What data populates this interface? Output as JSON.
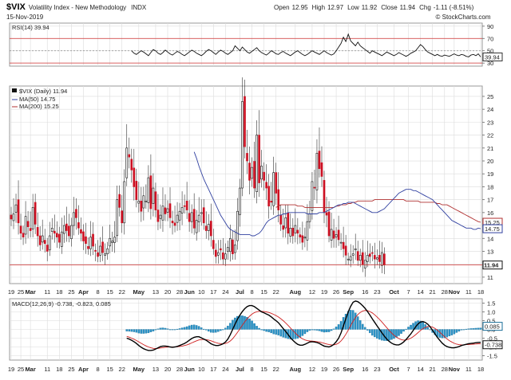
{
  "header": {
    "symbol": "$VIX",
    "name": "Volatility Index - New Methodology",
    "exchange": "INDX",
    "date": "15-Nov-2019",
    "ohlc": [
      {
        "label": "Open",
        "value": "12.95"
      },
      {
        "label": "High",
        "value": "12.97"
      },
      {
        "label": "Low",
        "value": "11.92"
      },
      {
        "label": "Close",
        "value": "11.94"
      },
      {
        "label": "Chg",
        "value": "-1.11 (-8.51%)"
      }
    ],
    "watermark": "© StockCharts.com"
  },
  "chart_data": [
    {
      "type": "line",
      "name": "rsi",
      "legend": "RSI(14) 39.94",
      "ylim": [
        25,
        95
      ],
      "yticks": [
        30,
        50,
        70,
        90
      ],
      "ref_lines": [
        30,
        50,
        70
      ],
      "last_label": "39.94",
      "values": [
        50,
        46,
        44,
        47,
        50,
        48,
        45,
        42,
        47,
        52,
        50,
        46,
        44,
        47,
        51,
        48,
        45,
        43,
        46,
        49,
        47,
        44,
        42,
        45,
        48,
        51,
        49,
        46,
        44,
        42,
        45,
        49,
        52,
        50,
        47,
        44,
        48,
        51,
        49,
        46,
        44,
        47,
        50,
        58,
        54,
        50,
        56,
        52,
        48,
        46,
        49,
        52,
        55,
        50,
        47,
        45,
        43,
        46,
        50,
        48,
        45,
        44,
        47,
        49,
        46,
        44,
        42,
        45,
        48,
        50,
        47,
        44,
        42,
        44,
        47,
        50,
        48,
        46,
        44,
        47,
        50,
        47,
        45,
        43,
        45,
        50,
        56,
        62,
        72,
        65,
        77,
        66,
        62,
        58,
        64,
        58,
        55,
        52,
        49,
        46,
        50,
        48,
        46,
        44,
        42,
        45,
        48,
        46,
        44,
        42,
        44,
        47,
        45,
        43,
        41,
        43,
        46,
        48,
        50,
        55,
        60,
        57,
        52,
        48,
        46,
        44,
        42,
        44,
        42,
        41,
        43,
        42,
        41,
        43,
        45,
        43,
        42,
        44,
        43,
        41,
        40,
        43,
        44,
        42,
        45,
        40
      ]
    },
    {
      "type": "candlestick",
      "name": "price",
      "legend": [
        "$VIX (Daily) 11.94",
        "MA(50) 14.75",
        "MA(200) 15.25"
      ],
      "ylim": [
        10.5,
        25.8
      ],
      "yticks": [
        11,
        12,
        13,
        14,
        15,
        16,
        17,
        18,
        19,
        20,
        21,
        22,
        23,
        24,
        25
      ],
      "last_close": "11.94",
      "ma50_label": "14.75",
      "ma200_label": "15.25",
      "closes": [
        15.5,
        15.9,
        16.6,
        15.2,
        14.4,
        14.1,
        15.7,
        14.9,
        14.6,
        16.4,
        15.1,
        14.2,
        13.5,
        14.2,
        13.6,
        13.0,
        14.2,
        14.8,
        14.4,
        14.1,
        13.7,
        14.5,
        15.0,
        14.6,
        14.2,
        15.0,
        16.0,
        15.6,
        14.8,
        14.4,
        13.8,
        13.6,
        13.2,
        14.1,
        13.4,
        13.0,
        12.6,
        13.4,
        12.9,
        12.8,
        13.2,
        14.0,
        13.8,
        14.1,
        17.0,
        16.4,
        15.2,
        18.4,
        21.0,
        20.3,
        19.3,
        18.0,
        17.0,
        16.9,
        16.1,
        17.3,
        16.9,
        18.7,
        16.3,
        17.9,
        16.2,
        15.3,
        15.8,
        16.5,
        15.9,
        16.3,
        15.6,
        15.2,
        15.0,
        15.8,
        16.1,
        16.4,
        16.5,
        16.2,
        15.3,
        16.0,
        14.8,
        15.4,
        15.8,
        16.0,
        15.2,
        14.6,
        15.1,
        14.2,
        13.2,
        12.6,
        12.9,
        13.1,
        12.4,
        12.8,
        13.3,
        14.0,
        12.8,
        13.5,
        16.1,
        17.9,
        24.6,
        21.1,
        20.0,
        18.5,
        19.5,
        17.9,
        22.0,
        18.3,
        19.6,
        18.5,
        17.9,
        16.5,
        16.8,
        19.1,
        17.5,
        16.2,
        15.1,
        14.7,
        15.6,
        14.4,
        14.8,
        14.2,
        15.0,
        14.4,
        14.1,
        13.7,
        14.1,
        15.3,
        15.9,
        18.4,
        17.9,
        20.6,
        19.4,
        18.8,
        16.0,
        15.8,
        14.2,
        14.7,
        14.0,
        14.3,
        13.9,
        13.7,
        13.2,
        12.7,
        12.4,
        12.6,
        12.8,
        13.2,
        12.3,
        12.7,
        12.0,
        12.3,
        12.7,
        12.6,
        12.9,
        12.4,
        12.5,
        12.2,
        12.9,
        11.94
      ],
      "ma50": [
        20.7,
        20.2,
        19.6,
        19.1,
        18.6,
        18.2,
        17.8,
        17.4,
        17.0,
        16.6,
        16.2,
        15.8,
        15.5,
        15.2,
        14.9,
        14.7,
        14.6,
        14.5,
        14.4,
        14.3,
        14.3,
        14.3,
        14.3,
        14.3,
        14.2,
        14.2,
        14.3,
        14.4,
        14.6,
        14.9,
        15.2,
        15.4,
        15.5,
        15.6,
        15.7,
        15.8,
        15.8,
        15.9,
        15.9,
        16.0,
        16.0,
        16.0,
        16.0,
        16.0,
        16.0,
        16.0,
        16.0,
        15.9,
        15.9,
        15.9,
        15.9,
        15.9,
        16.0,
        16.0,
        16.0,
        16.1,
        16.2,
        16.3,
        16.4,
        16.5,
        16.6,
        16.6,
        16.7,
        16.7,
        16.8,
        16.8,
        16.8,
        16.7,
        16.6,
        16.5,
        16.4,
        16.3,
        16.2,
        16.1,
        16.0,
        16.0,
        16.0,
        16.1,
        16.2,
        16.3,
        16.5,
        16.7,
        16.9,
        17.1,
        17.3,
        17.5,
        17.6,
        17.7,
        17.8,
        17.8,
        17.8,
        17.7,
        17.7,
        17.6,
        17.5,
        17.4,
        17.3,
        17.2,
        17.1,
        17.0,
        16.8,
        16.6,
        16.4,
        16.2,
        16.0,
        15.8,
        15.6,
        15.4,
        15.3,
        15.2,
        15.1,
        15.0,
        14.9,
        14.8,
        14.8,
        14.8,
        14.7,
        14.7,
        14.8,
        14.75
      ],
      "ma200": [
        16.4,
        16.5,
        16.6,
        16.6,
        16.6,
        16.6,
        16.6,
        16.6,
        16.6,
        16.5,
        16.5,
        16.5,
        16.4,
        16.4,
        16.4,
        16.4,
        16.4,
        16.4,
        16.4,
        16.4,
        16.4,
        16.4,
        16.4,
        16.4,
        16.4,
        16.5,
        16.5,
        16.6,
        16.6,
        16.6,
        16.7,
        16.7,
        16.8,
        16.8,
        16.9,
        16.9,
        16.9,
        16.9,
        16.9,
        16.9,
        16.9,
        17.0,
        17.0,
        17.0,
        17.0,
        17.0,
        17.0,
        17.0,
        17.0,
        17.0,
        17.0,
        17.0,
        17.0,
        17.0,
        16.9,
        16.9,
        16.9,
        16.9,
        16.9,
        16.9,
        16.8,
        16.8,
        16.8,
        16.8,
        16.8,
        16.8,
        16.8,
        16.7,
        16.7,
        16.6,
        16.6,
        16.6,
        16.5,
        16.4,
        16.3,
        16.2,
        16.1,
        16.0,
        15.9,
        15.8,
        15.7,
        15.6,
        15.5,
        15.4,
        15.3,
        15.25
      ]
    },
    {
      "type": "bar",
      "name": "macd",
      "legend": "MACD(12,26,9) -0.738, -0.823, 0.085",
      "ylim": [
        -1.75,
        1.75
      ],
      "yticks": [
        -1.5,
        -1.0,
        -0.5,
        0.0,
        0.5,
        1.0,
        1.5
      ],
      "last_labels": [
        "0.085",
        "-0.738"
      ],
      "macd": [
        -0.5,
        -0.55,
        -0.62,
        -0.7,
        -0.8,
        -0.92,
        -1.02,
        -1.1,
        -1.16,
        -1.2,
        -1.2,
        -1.18,
        -1.12,
        -1.05,
        -0.98,
        -0.95,
        -0.95,
        -0.97,
        -1.0,
        -1.02,
        -1.0,
        -0.97,
        -0.92,
        -0.86,
        -0.8,
        -0.72,
        -0.62,
        -0.52,
        -0.45,
        -0.42,
        -0.42,
        -0.48,
        -0.55,
        -0.62,
        -0.72,
        -0.82,
        -0.88,
        -0.92,
        -0.92,
        -0.88,
        -0.82,
        -0.72,
        -0.55,
        -0.3,
        0.0,
        0.3,
        0.58,
        0.82,
        1.02,
        1.18,
        1.3,
        1.36,
        1.36,
        1.3,
        1.2,
        1.1,
        1.0,
        0.95,
        0.88,
        0.82,
        0.72,
        0.6,
        0.5,
        0.38,
        0.22,
        0.05,
        -0.12,
        -0.3,
        -0.48,
        -0.62,
        -0.75,
        -0.85,
        -0.9,
        -0.9,
        -0.85,
        -0.78,
        -0.72,
        -0.7,
        -0.72,
        -0.75,
        -0.8,
        -0.88,
        -0.95,
        -0.98,
        -1.0,
        -0.95,
        -0.85,
        -0.7,
        -0.5,
        -0.2,
        0.2,
        0.6,
        1.0,
        1.32,
        1.55,
        1.62,
        1.58,
        1.48,
        1.35,
        1.2,
        1.02,
        0.82,
        0.6,
        0.4,
        0.2,
        0.0,
        -0.2,
        -0.38,
        -0.55,
        -0.68,
        -0.78,
        -0.85,
        -0.88,
        -0.88,
        -0.82,
        -0.72,
        -0.58,
        -0.42,
        -0.25,
        -0.05,
        0.15,
        0.32,
        0.42,
        0.45,
        0.4,
        0.3,
        0.15,
        -0.05,
        -0.25,
        -0.45,
        -0.62,
        -0.78,
        -0.9,
        -0.98,
        -1.02,
        -1.05,
        -1.05,
        -1.02,
        -0.98,
        -0.92,
        -0.88,
        -0.85,
        -0.82,
        -0.8,
        -0.78,
        -0.76,
        -0.74,
        -0.738
      ],
      "signal": [
        -0.4,
        -0.44,
        -0.5,
        -0.56,
        -0.63,
        -0.71,
        -0.79,
        -0.87,
        -0.94,
        -1.0,
        -1.05,
        -1.08,
        -1.09,
        -1.08,
        -1.06,
        -1.04,
        -1.02,
        -1.01,
        -1.0,
        -1.0,
        -1.0,
        -0.99,
        -0.97,
        -0.95,
        -0.92,
        -0.88,
        -0.83,
        -0.77,
        -0.71,
        -0.65,
        -0.6,
        -0.58,
        -0.57,
        -0.58,
        -0.61,
        -0.65,
        -0.7,
        -0.75,
        -0.79,
        -0.81,
        -0.82,
        -0.8,
        -0.75,
        -0.66,
        -0.53,
        -0.36,
        -0.17,
        0.03,
        0.24,
        0.43,
        0.6,
        0.75,
        0.87,
        0.96,
        1.01,
        1.03,
        1.03,
        1.02,
        1.0,
        0.97,
        0.92,
        0.86,
        0.79,
        0.71,
        0.61,
        0.5,
        0.37,
        0.23,
        0.08,
        -0.07,
        -0.21,
        -0.34,
        -0.45,
        -0.54,
        -0.6,
        -0.64,
        -0.66,
        -0.67,
        -0.68,
        -0.7,
        -0.72,
        -0.75,
        -0.79,
        -0.83,
        -0.86,
        -0.88,
        -0.88,
        -0.85,
        -0.78,
        -0.66,
        -0.49,
        -0.28,
        -0.04,
        0.22,
        0.46,
        0.68,
        0.85,
        0.97,
        1.05,
        1.08,
        1.07,
        1.02,
        0.94,
        0.83,
        0.71,
        0.57,
        0.42,
        0.26,
        0.1,
        -0.06,
        -0.2,
        -0.33,
        -0.44,
        -0.52,
        -0.58,
        -0.61,
        -0.6,
        -0.56,
        -0.5,
        -0.41,
        -0.3,
        -0.18,
        -0.06,
        0.04,
        0.12,
        0.17,
        0.17,
        0.13,
        0.06,
        -0.04,
        -0.16,
        -0.29,
        -0.42,
        -0.54,
        -0.64,
        -0.72,
        -0.79,
        -0.84,
        -0.87,
        -0.88,
        -0.88,
        -0.87,
        -0.86,
        -0.85,
        -0.84,
        -0.83,
        -0.82,
        -0.823
      ]
    }
  ],
  "x_axis": {
    "labels": [
      {
        "i": 0,
        "text": "19",
        "bold": false
      },
      {
        "i": 4,
        "text": "25",
        "bold": false
      },
      {
        "i": 8,
        "text": "Mar",
        "bold": true
      },
      {
        "i": 15,
        "text": "11",
        "bold": false
      },
      {
        "i": 20,
        "text": "18",
        "bold": false
      },
      {
        "i": 25,
        "text": "25",
        "bold": false
      },
      {
        "i": 30,
        "text": "Apr",
        "bold": true
      },
      {
        "i": 36,
        "text": "8",
        "bold": false
      },
      {
        "i": 41,
        "text": "15",
        "bold": false
      },
      {
        "i": 46,
        "text": "22",
        "bold": false
      },
      {
        "i": 53,
        "text": "May",
        "bold": true
      },
      {
        "i": 60,
        "text": "13",
        "bold": false
      },
      {
        "i": 65,
        "text": "20",
        "bold": false
      },
      {
        "i": 70,
        "text": "28",
        "bold": false
      },
      {
        "i": 74,
        "text": "Jun",
        "bold": true
      },
      {
        "i": 79,
        "text": "10",
        "bold": false
      },
      {
        "i": 84,
        "text": "17",
        "bold": false
      },
      {
        "i": 89,
        "text": "24",
        "bold": false
      },
      {
        "i": 95,
        "text": "Jul",
        "bold": true
      },
      {
        "i": 100,
        "text": "8",
        "bold": false
      },
      {
        "i": 105,
        "text": "15",
        "bold": false
      },
      {
        "i": 110,
        "text": "22",
        "bold": false
      },
      {
        "i": 118,
        "text": "Aug",
        "bold": true
      },
      {
        "i": 125,
        "text": "12",
        "bold": false
      },
      {
        "i": 130,
        "text": "19",
        "bold": false
      },
      {
        "i": 135,
        "text": "26",
        "bold": false
      },
      {
        "i": 140,
        "text": "Sep",
        "bold": true
      },
      {
        "i": 147,
        "text": "16",
        "bold": false
      },
      {
        "i": 152,
        "text": "23",
        "bold": false
      },
      {
        "i": 159,
        "text": "Oct",
        "bold": true
      },
      {
        "i": 165,
        "text": "7",
        "bold": false
      },
      {
        "i": 170,
        "text": "14",
        "bold": false
      },
      {
        "i": 175,
        "text": "21",
        "bold": false
      },
      {
        "i": 180,
        "text": "28",
        "bold": false
      },
      {
        "i": 184,
        "text": "Nov",
        "bold": true
      },
      {
        "i": 190,
        "text": "11",
        "bold": false
      },
      {
        "i": 195,
        "text": "18",
        "bold": false
      }
    ],
    "count": 196
  },
  "colors": {
    "up": "#cc1122",
    "down": "#111111",
    "ma50": "#3040a0",
    "ma200": "#b03030",
    "macd": "#000000",
    "signal": "#d02020",
    "hist": "#2a93c8",
    "grid": "#dcdcdc",
    "ref_red": "#d03030"
  }
}
